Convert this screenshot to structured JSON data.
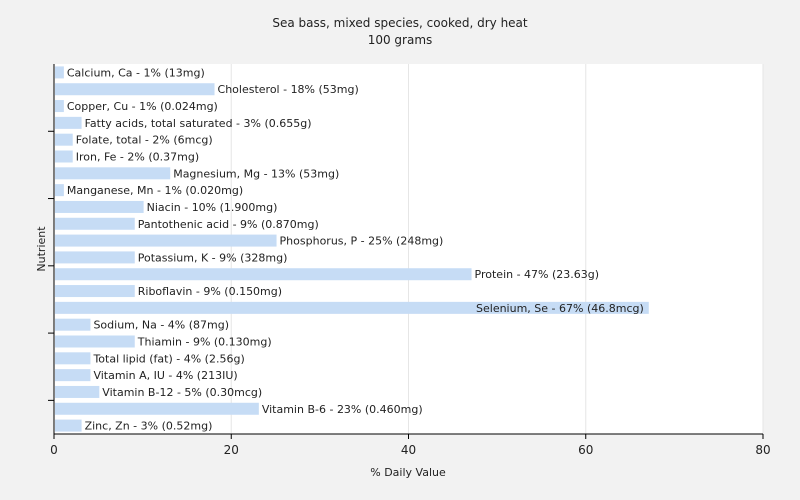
{
  "chart_data": {
    "type": "bar",
    "orientation": "horizontal",
    "title": "Sea bass, mixed species, cooked, dry heat",
    "subtitle": "100 grams",
    "xlabel": "% Daily Value",
    "ylabel": "Nutrient",
    "xlim": [
      0,
      80
    ],
    "xticks": [
      0,
      20,
      40,
      60,
      80
    ],
    "grid": true,
    "bar_color": "#c6dcf5",
    "categories": [
      "Calcium, Ca",
      "Cholesterol",
      "Copper, Cu",
      "Fatty acids, total saturated",
      "Folate, total",
      "Iron, Fe",
      "Magnesium, Mg",
      "Manganese, Mn",
      "Niacin",
      "Pantothenic acid",
      "Phosphorus, P",
      "Potassium, K",
      "Protein",
      "Riboflavin",
      "Selenium, Se",
      "Sodium, Na",
      "Thiamin",
      "Total lipid (fat)",
      "Vitamin A, IU",
      "Vitamin B-12",
      "Vitamin B-6",
      "Zinc, Zn"
    ],
    "values": [
      1,
      18,
      1,
      3,
      2,
      2,
      13,
      1,
      10,
      9,
      25,
      9,
      47,
      9,
      67,
      4,
      9,
      4,
      4,
      5,
      23,
      3
    ],
    "labels": [
      "Calcium, Ca - 1% (13mg)",
      "Cholesterol - 18% (53mg)",
      "Copper, Cu - 1% (0.024mg)",
      "Fatty acids, total saturated - 3% (0.655g)",
      "Folate, total - 2% (6mcg)",
      "Iron, Fe - 2% (0.37mg)",
      "Magnesium, Mg - 13% (53mg)",
      "Manganese, Mn - 1% (0.020mg)",
      "Niacin - 10% (1.900mg)",
      "Pantothenic acid - 9% (0.870mg)",
      "Phosphorus, P - 25% (248mg)",
      "Potassium, K - 9% (328mg)",
      "Protein - 47% (23.63g)",
      "Riboflavin - 9% (0.150mg)",
      "Selenium, Se - 67% (46.8mcg)",
      "Sodium, Na - 4% (87mg)",
      "Thiamin - 9% (0.130mg)",
      "Total lipid (fat) - 4% (2.56g)",
      "Vitamin A, IU - 4% (213IU)",
      "Vitamin B-12 - 5% (0.30mcg)",
      "Vitamin B-6 - 23% (0.460mg)",
      "Zinc, Zn - 3% (0.52mg)"
    ]
  }
}
